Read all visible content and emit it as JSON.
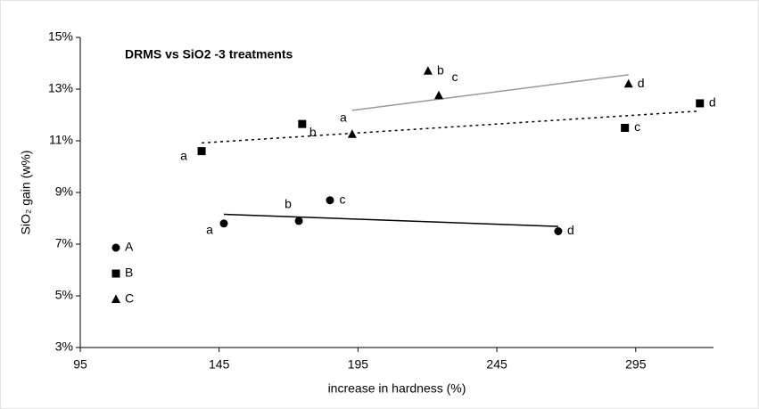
{
  "chart_data": {
    "type": "scatter",
    "title": "DRMS vs SiO2  -3 treatments",
    "x_label": "increase in hardness (%)",
    "y_label": "SiO₂ gain (w%)",
    "xlim": [
      95,
      323
    ],
    "xticks": [
      95,
      145,
      195,
      245,
      295
    ],
    "ylim": [
      3,
      15
    ],
    "yticks": [
      {
        "value": 3,
        "label": "3%"
      },
      {
        "value": 5,
        "label": "5%"
      },
      {
        "value": 7,
        "label": "7%"
      },
      {
        "value": 9,
        "label": "9%"
      },
      {
        "value": 11,
        "label": "11%"
      },
      {
        "value": 13,
        "label": "13%"
      },
      {
        "value": 15,
        "label": "15%"
      }
    ],
    "trendline": true,
    "legend": "lower left",
    "series": [
      {
        "name": "A",
        "marker": "circle",
        "color": "#000000",
        "line_color": "#000000",
        "line_style": "solid",
        "x": [
          146.7,
          173.7,
          184.9,
          267.1
        ],
        "values": [
          7.8,
          7.9,
          8.7,
          7.5
        ],
        "point_labels": [
          "a",
          "b",
          "c",
          "d"
        ]
      },
      {
        "name": "B",
        "marker": "square",
        "color": "#000000",
        "line_color": "#000000",
        "line_style": "dotted",
        "x": [
          138.7,
          174.9,
          291.1,
          318.1
        ],
        "values": [
          10.6,
          11.65,
          11.5,
          12.45
        ],
        "point_labels": [
          "a",
          "b",
          "c",
          "d"
        ]
      },
      {
        "name": "C",
        "marker": "triangle",
        "color": "#000000",
        "line_color": "#999999",
        "line_style": "solid",
        "x": [
          192.9,
          220.2,
          224.1,
          292.4
        ],
        "values": [
          11.25,
          13.7,
          12.75,
          13.2
        ],
        "point_labels": [
          "a",
          "b",
          "c",
          "d"
        ]
      }
    ]
  }
}
